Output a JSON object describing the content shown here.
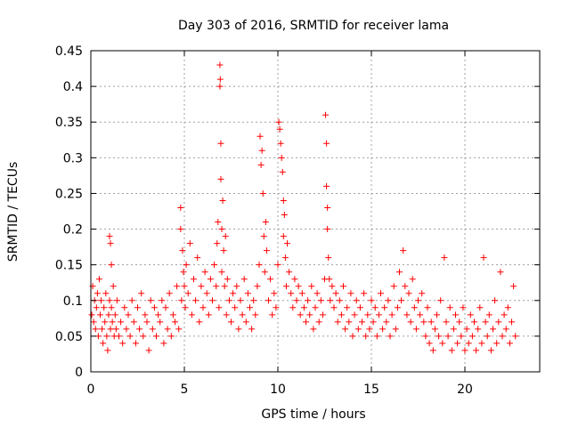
{
  "chart_data": {
    "type": "scatter",
    "title": "Day 303 of 2016, SRMTID for receiver lama",
    "xlabel": "GPS time / hours",
    "ylabel": "SRMTID / TECUs",
    "xlim": [
      0,
      24
    ],
    "ylim": [
      0,
      0.45
    ],
    "xticks": [
      0,
      5,
      10,
      15,
      20
    ],
    "xtick_labels": [
      "0",
      "5",
      "10",
      "15",
      "20"
    ],
    "yticks": [
      0,
      0.05,
      0.1,
      0.15,
      0.2,
      0.25,
      0.3,
      0.35,
      0.4,
      0.45
    ],
    "ytick_labels": [
      "0",
      "0.05",
      "0.1",
      "0.15",
      "0.2",
      "0.25",
      "0.3",
      "0.35",
      "0.4",
      "0.45"
    ],
    "grid": true,
    "marker": "+",
    "series_color": "#ff0000",
    "series": [
      {
        "name": "SRMTID",
        "x": [
          0.05,
          0.1,
          0.15,
          0.2,
          0.25,
          0.3,
          0.35,
          0.4,
          0.45,
          0.5,
          0.55,
          0.6,
          0.65,
          0.7,
          0.75,
          0.8,
          0.85,
          0.9,
          0.95,
          1.0,
          1.0,
          1.05,
          1.05,
          1.1,
          1.1,
          1.15,
          1.2,
          1.25,
          1.3,
          1.35,
          1.4,
          1.5,
          1.6,
          1.7,
          1.8,
          1.9,
          2.0,
          2.1,
          2.2,
          2.3,
          2.4,
          2.5,
          2.6,
          2.7,
          2.8,
          2.9,
          3.0,
          3.1,
          3.2,
          3.3,
          3.4,
          3.5,
          3.6,
          3.7,
          3.8,
          3.9,
          4.0,
          4.1,
          4.2,
          4.3,
          4.4,
          4.5,
          4.6,
          4.7,
          4.8,
          4.8,
          4.85,
          4.9,
          4.95,
          5.0,
          5.05,
          5.1,
          5.2,
          5.3,
          5.4,
          5.5,
          5.6,
          5.7,
          5.8,
          5.9,
          6.0,
          6.1,
          6.2,
          6.3,
          6.4,
          6.5,
          6.6,
          6.7,
          6.75,
          6.8,
          6.85,
          6.9,
          6.9,
          6.92,
          6.95,
          6.95,
          7.0,
          7.0,
          7.05,
          7.1,
          7.15,
          7.2,
          7.25,
          7.3,
          7.4,
          7.5,
          7.6,
          7.7,
          7.8,
          7.9,
          8.0,
          8.1,
          8.2,
          8.3,
          8.4,
          8.5,
          8.6,
          8.7,
          8.8,
          8.9,
          9.0,
          9.05,
          9.1,
          9.15,
          9.2,
          9.25,
          9.3,
          9.35,
          9.4,
          9.5,
          9.6,
          9.7,
          9.8,
          9.9,
          10.0,
          10.05,
          10.1,
          10.15,
          10.2,
          10.25,
          10.3,
          10.3,
          10.35,
          10.4,
          10.45,
          10.5,
          10.6,
          10.7,
          10.8,
          10.9,
          11.0,
          11.1,
          11.2,
          11.3,
          11.4,
          11.5,
          11.6,
          11.7,
          11.8,
          11.9,
          12.0,
          12.1,
          12.2,
          12.3,
          12.4,
          12.5,
          12.55,
          12.6,
          12.6,
          12.65,
          12.65,
          12.7,
          12.75,
          12.8,
          12.9,
          13.0,
          13.1,
          13.2,
          13.3,
          13.4,
          13.5,
          13.6,
          13.7,
          13.8,
          13.9,
          14.0,
          14.1,
          14.2,
          14.3,
          14.4,
          14.5,
          14.6,
          14.7,
          14.8,
          14.9,
          15.0,
          15.1,
          15.2,
          15.3,
          15.4,
          15.5,
          15.6,
          15.7,
          15.8,
          15.9,
          16.0,
          16.1,
          16.2,
          16.3,
          16.4,
          16.5,
          16.6,
          16.7,
          16.8,
          16.9,
          17.0,
          17.1,
          17.2,
          17.3,
          17.4,
          17.5,
          17.6,
          17.7,
          17.8,
          17.9,
          18.0,
          18.1,
          18.2,
          18.3,
          18.4,
          18.5,
          18.6,
          18.7,
          18.8,
          18.9,
          19.0,
          19.1,
          19.2,
          19.3,
          19.4,
          19.5,
          19.6,
          19.7,
          19.8,
          19.9,
          20.0,
          20.1,
          20.2,
          20.3,
          20.4,
          20.5,
          20.6,
          20.7,
          20.8,
          20.9,
          21.0,
          21.1,
          21.2,
          21.3,
          21.4,
          21.5,
          21.6,
          21.7,
          21.8,
          21.9,
          22.0,
          22.1,
          22.2,
          22.3,
          22.4,
          22.5,
          22.6,
          22.7
        ],
        "y": [
          0.08,
          0.12,
          0.07,
          0.1,
          0.06,
          0.09,
          0.11,
          0.05,
          0.13,
          0.08,
          0.1,
          0.06,
          0.04,
          0.09,
          0.07,
          0.11,
          0.05,
          0.03,
          0.08,
          0.1,
          0.19,
          0.06,
          0.18,
          0.09,
          0.15,
          0.07,
          0.12,
          0.05,
          0.08,
          0.06,
          0.1,
          0.05,
          0.07,
          0.04,
          0.09,
          0.06,
          0.08,
          0.05,
          0.1,
          0.07,
          0.04,
          0.09,
          0.06,
          0.11,
          0.05,
          0.08,
          0.07,
          0.03,
          0.1,
          0.06,
          0.09,
          0.05,
          0.08,
          0.07,
          0.1,
          0.04,
          0.09,
          0.06,
          0.11,
          0.05,
          0.08,
          0.07,
          0.12,
          0.06,
          0.2,
          0.23,
          0.1,
          0.17,
          0.14,
          0.12,
          0.09,
          0.15,
          0.11,
          0.18,
          0.08,
          0.13,
          0.1,
          0.16,
          0.07,
          0.12,
          0.09,
          0.14,
          0.11,
          0.08,
          0.13,
          0.1,
          0.15,
          0.12,
          0.18,
          0.21,
          0.09,
          0.43,
          0.4,
          0.41,
          0.32,
          0.27,
          0.2,
          0.14,
          0.24,
          0.17,
          0.12,
          0.19,
          0.08,
          0.13,
          0.1,
          0.07,
          0.11,
          0.09,
          0.12,
          0.06,
          0.1,
          0.08,
          0.13,
          0.07,
          0.11,
          0.09,
          0.06,
          0.1,
          0.08,
          0.12,
          0.15,
          0.33,
          0.29,
          0.31,
          0.25,
          0.19,
          0.14,
          0.21,
          0.17,
          0.1,
          0.13,
          0.08,
          0.11,
          0.09,
          0.15,
          0.35,
          0.34,
          0.32,
          0.3,
          0.28,
          0.24,
          0.19,
          0.22,
          0.16,
          0.12,
          0.18,
          0.14,
          0.11,
          0.09,
          0.13,
          0.1,
          0.12,
          0.08,
          0.11,
          0.09,
          0.07,
          0.1,
          0.08,
          0.12,
          0.06,
          0.09,
          0.11,
          0.07,
          0.1,
          0.08,
          0.13,
          0.36,
          0.32,
          0.26,
          0.23,
          0.2,
          0.16,
          0.13,
          0.1,
          0.12,
          0.09,
          0.11,
          0.07,
          0.1,
          0.08,
          0.12,
          0.06,
          0.09,
          0.07,
          0.11,
          0.05,
          0.08,
          0.1,
          0.06,
          0.09,
          0.07,
          0.11,
          0.05,
          0.08,
          0.06,
          0.1,
          0.07,
          0.09,
          0.05,
          0.08,
          0.11,
          0.06,
          0.09,
          0.07,
          0.1,
          0.05,
          0.08,
          0.12,
          0.06,
          0.09,
          0.14,
          0.1,
          0.17,
          0.12,
          0.08,
          0.11,
          0.07,
          0.13,
          0.09,
          0.06,
          0.1,
          0.08,
          0.11,
          0.07,
          0.05,
          0.09,
          0.04,
          0.07,
          0.03,
          0.06,
          0.08,
          0.05,
          0.1,
          0.04,
          0.16,
          0.07,
          0.05,
          0.09,
          0.03,
          0.06,
          0.08,
          0.04,
          0.07,
          0.05,
          0.09,
          0.03,
          0.06,
          0.04,
          0.08,
          0.05,
          0.07,
          0.03,
          0.06,
          0.09,
          0.04,
          0.16,
          0.07,
          0.05,
          0.08,
          0.03,
          0.06,
          0.1,
          0.04,
          0.07,
          0.14,
          0.05,
          0.08,
          0.06,
          0.09,
          0.04,
          0.07,
          0.12,
          0.05
        ]
      }
    ]
  }
}
